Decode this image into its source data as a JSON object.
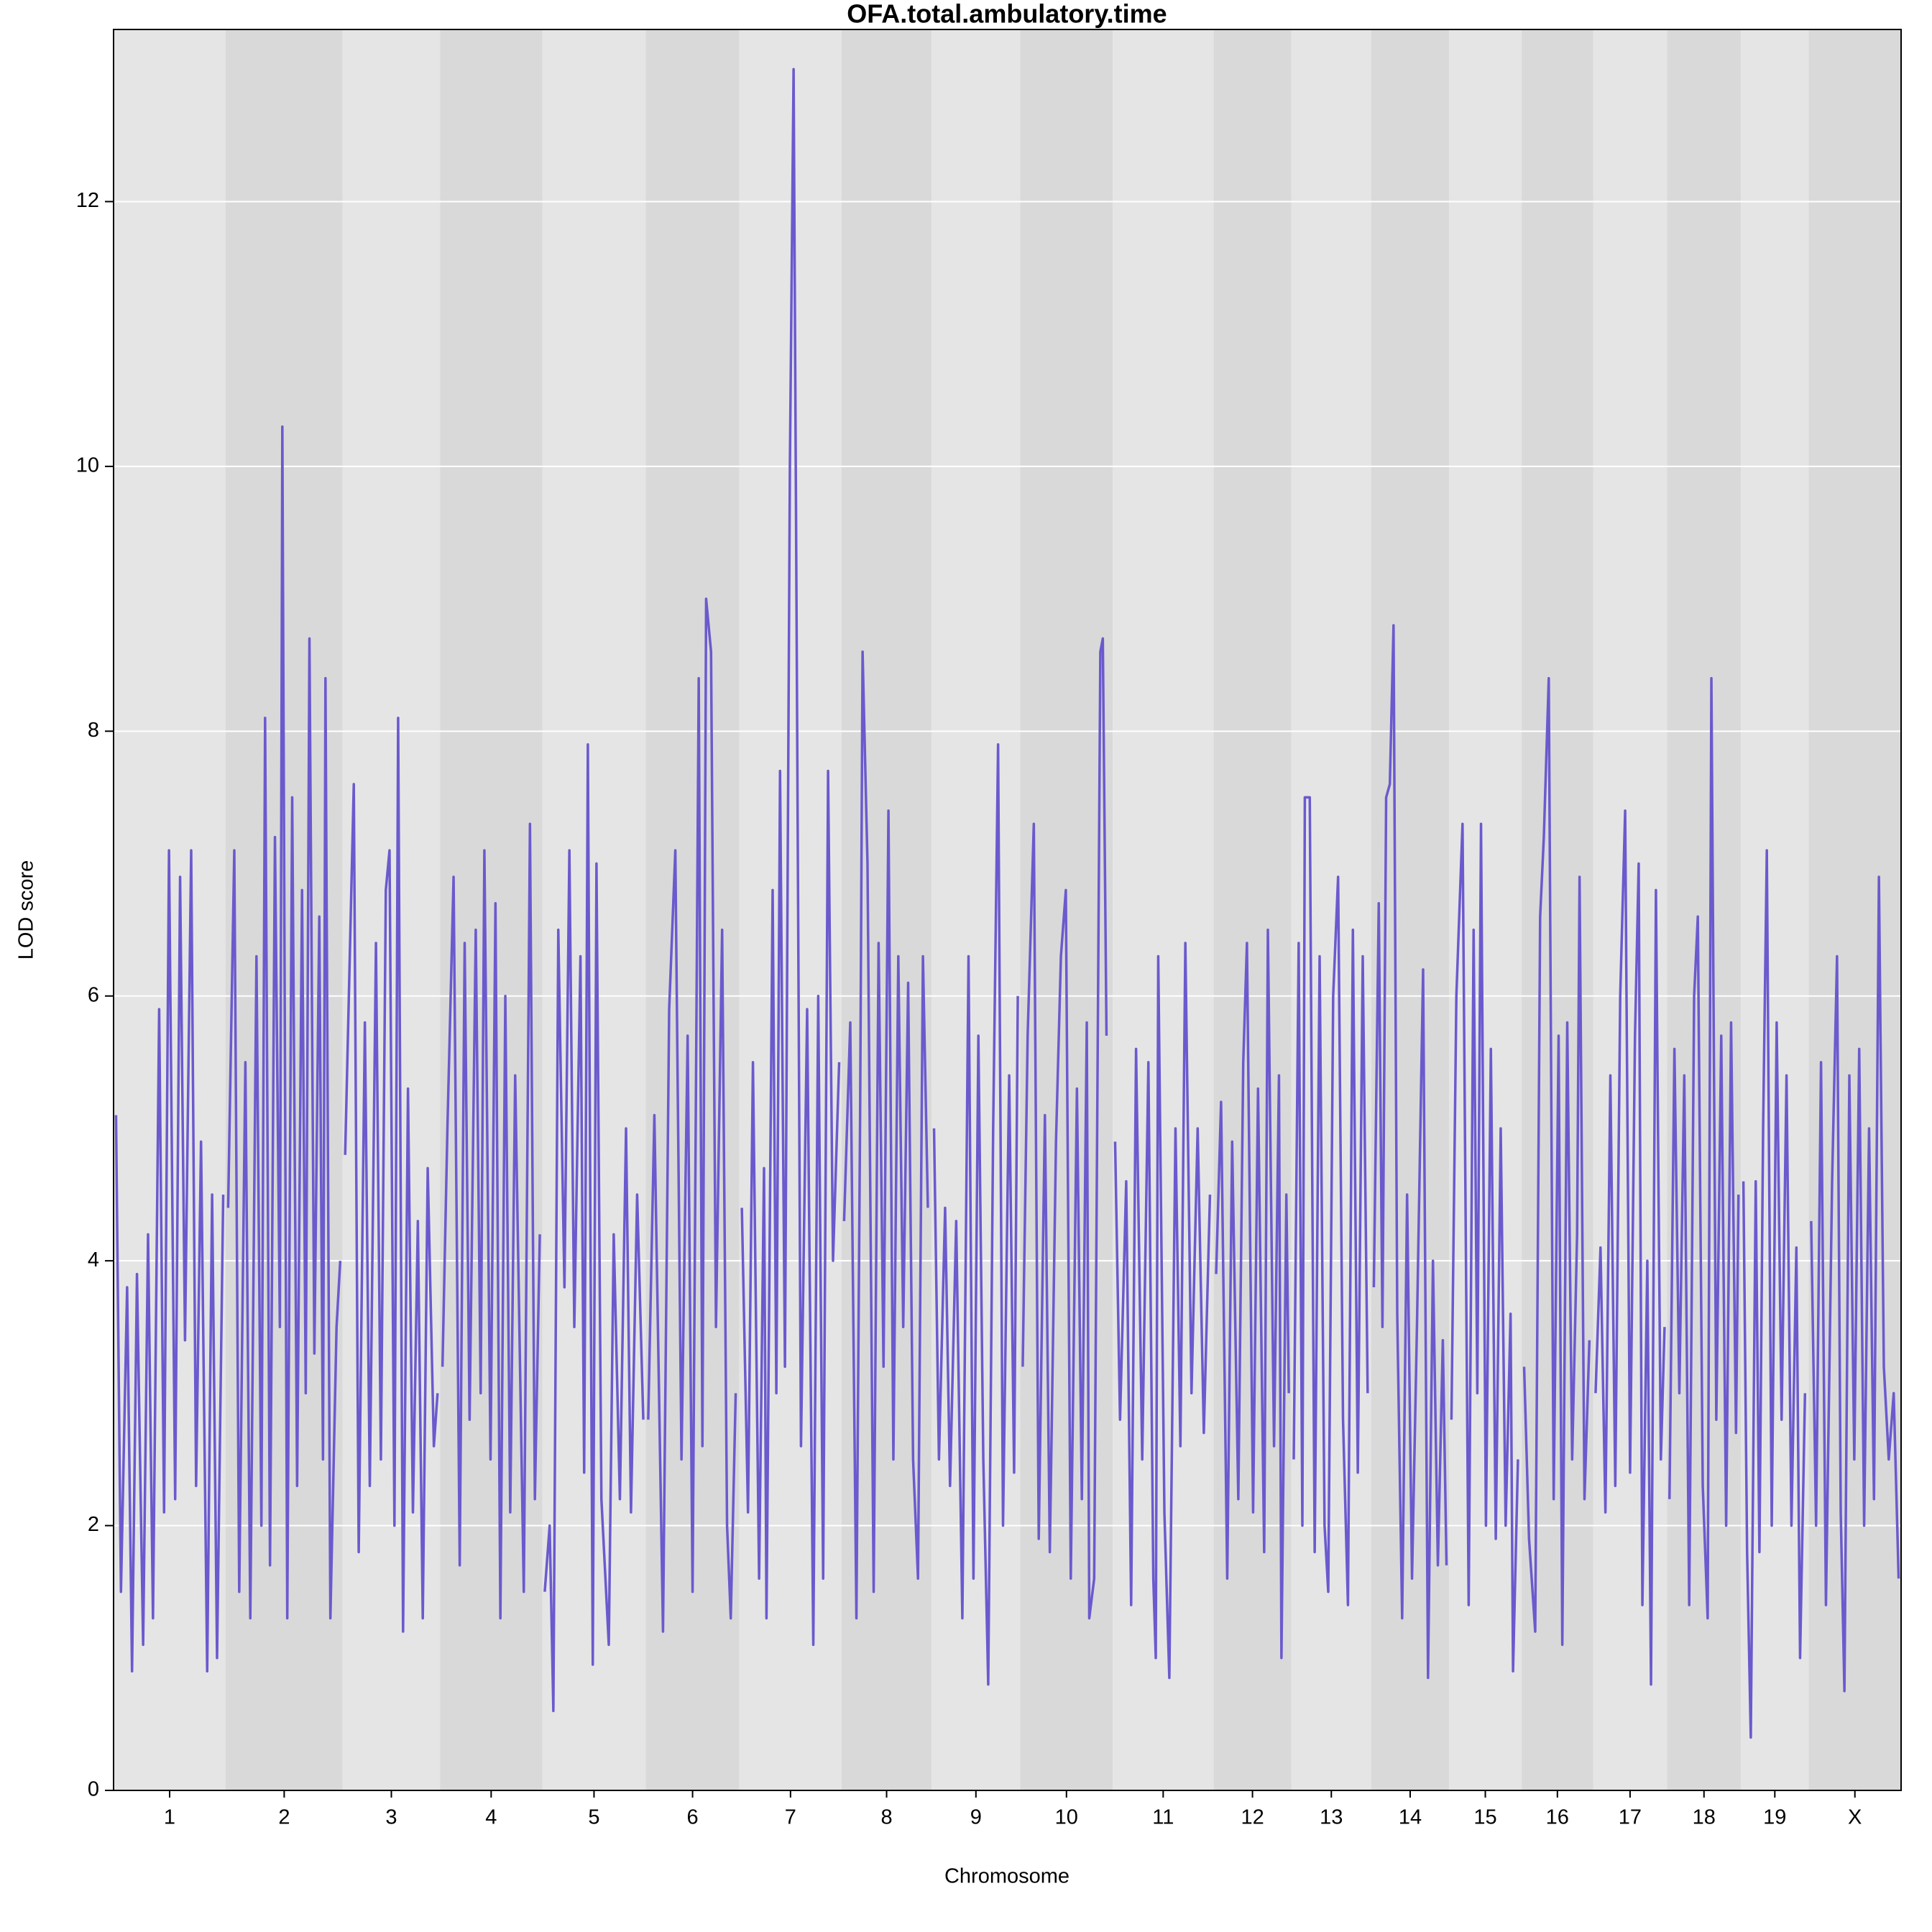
{
  "chart_data": {
    "type": "line",
    "title": "OFA.total.ambulatory.time",
    "xlabel": "Chromosome",
    "ylabel": "LOD score",
    "color": "#6a5acd",
    "band_colors": [
      "#e5e5e5",
      "#d9d9d9"
    ],
    "grid": true,
    "xlim": [
      0,
      1451
    ],
    "ylim": [
      0,
      13.3
    ],
    "yticks": [
      0,
      2,
      4,
      6,
      8,
      10,
      12
    ],
    "chromosomes": [
      {
        "name": "1",
        "xlim": [
          0,
          91
        ],
        "x": [
          2,
          6,
          11,
          15,
          19,
          24,
          28,
          32,
          37,
          41,
          45,
          50,
          54,
          58,
          63,
          67,
          71,
          76,
          80,
          84,
          89
        ],
        "values": [
          5.1,
          1.5,
          3.8,
          0.9,
          3.9,
          1.1,
          4.2,
          1.3,
          5.9,
          2.1,
          7.1,
          2.2,
          6.9,
          3.4,
          7.1,
          2.3,
          4.9,
          0.9,
          4.5,
          1.0,
          4.5
        ]
      },
      {
        "name": "2",
        "xlim": [
          91,
          186
        ],
        "x": [
          93,
          98,
          102,
          107,
          111,
          116,
          120,
          123,
          127,
          131,
          135,
          137,
          141,
          145,
          149,
          153,
          156,
          159,
          163,
          167,
          170,
          172,
          176,
          181,
          184
        ],
        "values": [
          4.4,
          7.1,
          1.5,
          5.5,
          1.3,
          6.3,
          2.0,
          8.1,
          1.7,
          7.2,
          3.5,
          10.3,
          1.3,
          7.5,
          2.3,
          6.8,
          3.0,
          8.7,
          3.3,
          6.6,
          2.5,
          8.4,
          1.3,
          3.5,
          4.0
        ]
      },
      {
        "name": "3",
        "xlim": [
          186,
          265
        ],
        "x": [
          188,
          195,
          199,
          204,
          208,
          213,
          217,
          221,
          224,
          228,
          231,
          235,
          239,
          243,
          247,
          251,
          255,
          260,
          263
        ],
        "values": [
          4.8,
          7.6,
          1.8,
          5.8,
          2.3,
          6.4,
          2.5,
          6.8,
          7.1,
          2.0,
          8.1,
          1.2,
          5.3,
          2.1,
          4.3,
          1.3,
          4.7,
          2.6,
          3.0
        ]
      },
      {
        "name": "4",
        "xlim": [
          265,
          348
        ],
        "x": [
          267,
          271,
          276,
          281,
          285,
          289,
          294,
          298,
          301,
          306,
          310,
          314,
          318,
          322,
          326,
          333,
          337,
          338,
          342,
          346
        ],
        "values": [
          3.2,
          5.0,
          6.9,
          1.7,
          6.4,
          2.8,
          6.5,
          3.0,
          7.1,
          2.5,
          6.7,
          1.3,
          6.0,
          2.1,
          5.4,
          1.5,
          6.1,
          7.3,
          2.2,
          4.2
        ]
      },
      {
        "name": "5",
        "xlim": [
          348,
          432
        ],
        "x": [
          350,
          354,
          357,
          361,
          366,
          370,
          374,
          379,
          382,
          385,
          389,
          392,
          396,
          402,
          406,
          411,
          416,
          420,
          425,
          430
        ],
        "values": [
          1.5,
          2.0,
          0.6,
          6.5,
          3.8,
          7.1,
          3.5,
          6.3,
          2.4,
          7.9,
          0.95,
          7.0,
          2.2,
          1.1,
          4.2,
          2.2,
          5.0,
          2.1,
          4.5,
          2.8
        ]
      },
      {
        "name": "6",
        "xlim": [
          432,
          508
        ],
        "x": [
          434,
          439,
          446,
          451,
          456,
          461,
          466,
          470,
          475,
          478,
          481,
          485,
          489,
          494,
          498,
          501,
          505
        ],
        "values": [
          2.8,
          5.1,
          1.2,
          5.9,
          7.1,
          2.5,
          5.7,
          1.5,
          8.4,
          2.6,
          9.0,
          8.6,
          3.5,
          6.5,
          2.0,
          1.3,
          3.0
        ]
      },
      {
        "name": "7",
        "xlim": [
          508,
          591
        ],
        "x": [
          510,
          515,
          519,
          524,
          528,
          530,
          535,
          538,
          541,
          545,
          549,
          552,
          554,
          558,
          563,
          568,
          572,
          576,
          580,
          584,
          589
        ],
        "values": [
          4.4,
          2.1,
          5.5,
          1.6,
          4.7,
          1.3,
          6.8,
          3.0,
          7.7,
          3.2,
          10.0,
          13.0,
          9.6,
          2.6,
          5.9,
          1.1,
          6.0,
          1.6,
          7.7,
          4.0,
          5.5
        ]
      },
      {
        "name": "8",
        "xlim": [
          591,
          664
        ],
        "x": [
          593,
          598,
          603,
          606,
          608,
          612,
          617,
          621,
          625,
          629,
          633,
          637,
          641,
          645,
          649,
          653,
          657,
          661
        ],
        "values": [
          4.3,
          5.8,
          1.3,
          5.1,
          8.6,
          7.0,
          1.5,
          6.4,
          3.2,
          7.4,
          2.5,
          6.3,
          3.5,
          6.1,
          2.5,
          1.6,
          6.3,
          4.4
        ]
      },
      {
        "name": "9",
        "xlim": [
          664,
          736
        ],
        "x": [
          666,
          670,
          675,
          679,
          684,
          689,
          694,
          698,
          702,
          706,
          710,
          714,
          718,
          722,
          727,
          731,
          734
        ],
        "values": [
          5.0,
          2.5,
          4.4,
          2.3,
          4.3,
          1.3,
          6.3,
          1.6,
          5.7,
          2.5,
          0.8,
          5.0,
          7.9,
          2.0,
          5.4,
          2.4,
          6.0
        ]
      },
      {
        "name": "10",
        "xlim": [
          736,
          811
        ],
        "x": [
          738,
          742,
          747,
          751,
          756,
          760,
          765,
          769,
          773,
          777,
          782,
          786,
          790,
          792,
          796,
          801,
          803,
          806
        ],
        "values": [
          3.2,
          5.7,
          7.3,
          1.9,
          5.1,
          1.8,
          4.9,
          6.3,
          6.8,
          1.6,
          5.3,
          2.2,
          5.8,
          1.3,
          1.6,
          8.6,
          8.7,
          5.7
        ]
      },
      {
        "name": "11",
        "xlim": [
          811,
          893
        ],
        "x": [
          813,
          817,
          822,
          826,
          830,
          835,
          840,
          844,
          846,
          848,
          853,
          857,
          862,
          866,
          870,
          875,
          880,
          885,
          890
        ],
        "values": [
          4.9,
          2.8,
          4.6,
          1.4,
          5.6,
          2.5,
          5.5,
          1.6,
          1.0,
          6.3,
          2.1,
          0.85,
          5.0,
          2.6,
          6.4,
          3.0,
          5.0,
          2.7,
          4.5
        ]
      },
      {
        "name": "12",
        "xlim": [
          893,
          956
        ],
        "x": [
          895,
          899,
          904,
          908,
          913,
          917,
          920,
          925,
          929,
          934,
          937,
          942,
          946,
          948,
          952,
          954
        ],
        "values": [
          3.9,
          5.2,
          1.6,
          4.9,
          2.2,
          5.5,
          6.4,
          2.1,
          5.3,
          1.8,
          6.5,
          2.6,
          5.4,
          1.0,
          4.5,
          3.0
        ]
      },
      {
        "name": "13",
        "xlim": [
          956,
          1021
        ],
        "x": [
          958,
          962,
          965,
          967,
          971,
          975,
          979,
          983,
          986,
          990,
          994,
          998,
          1002,
          1006,
          1010,
          1014,
          1018
        ],
        "values": [
          2.5,
          6.4,
          2.0,
          7.5,
          7.5,
          1.8,
          6.3,
          2.0,
          1.5,
          6.0,
          6.9,
          2.8,
          1.4,
          6.5,
          2.4,
          6.3,
          3.0
        ]
      },
      {
        "name": "14",
        "xlim": [
          1021,
          1084
        ],
        "x": [
          1023,
          1027,
          1030,
          1033,
          1036,
          1039,
          1042,
          1046,
          1050,
          1054,
          1058,
          1063,
          1067,
          1071,
          1075,
          1079,
          1082
        ],
        "values": [
          3.8,
          6.7,
          3.5,
          7.5,
          7.6,
          8.8,
          3.6,
          1.3,
          4.5,
          1.6,
          3.5,
          6.2,
          0.85,
          4.0,
          1.7,
          3.4,
          1.7
        ]
      },
      {
        "name": "15",
        "xlim": [
          1084,
          1143
        ],
        "x": [
          1086,
          1090,
          1095,
          1100,
          1104,
          1107,
          1110,
          1114,
          1118,
          1122,
          1126,
          1130,
          1134,
          1136,
          1140
        ],
        "values": [
          2.8,
          6.0,
          7.3,
          1.4,
          6.5,
          3.0,
          7.3,
          2.0,
          5.6,
          1.9,
          5.0,
          2.0,
          3.6,
          0.9,
          2.5
        ]
      },
      {
        "name": "16",
        "xlim": [
          1143,
          1201
        ],
        "x": [
          1145,
          1149,
          1154,
          1158,
          1161,
          1165,
          1169,
          1173,
          1176,
          1180,
          1184,
          1188,
          1190,
          1194,
          1198
        ],
        "values": [
          3.2,
          1.9,
          1.2,
          6.6,
          7.2,
          8.4,
          2.2,
          5.7,
          1.1,
          5.8,
          2.5,
          4.2,
          6.9,
          2.2,
          3.4
        ]
      },
      {
        "name": "17",
        "xlim": [
          1201,
          1261
        ],
        "x": [
          1203,
          1207,
          1211,
          1215,
          1219,
          1223,
          1227,
          1231,
          1235,
          1238,
          1241,
          1245,
          1248,
          1252,
          1256,
          1259
        ],
        "values": [
          3.0,
          4.1,
          2.1,
          5.4,
          2.3,
          6.0,
          7.4,
          2.4,
          5.7,
          7.0,
          1.4,
          4.0,
          0.8,
          6.8,
          2.5,
          3.5
        ]
      },
      {
        "name": "18",
        "xlim": [
          1261,
          1321
        ],
        "x": [
          1263,
          1267,
          1271,
          1275,
          1279,
          1283,
          1286,
          1290,
          1294,
          1297,
          1301,
          1305,
          1309,
          1313,
          1317,
          1319
        ],
        "values": [
          2.2,
          5.6,
          3.0,
          5.4,
          1.4,
          6.0,
          6.6,
          2.3,
          1.3,
          8.4,
          2.8,
          5.7,
          2.0,
          5.8,
          2.7,
          4.5
        ]
      },
      {
        "name": "19",
        "xlim": [
          1321,
          1376
        ],
        "x": [
          1323,
          1326,
          1329,
          1333,
          1336,
          1339,
          1342,
          1346,
          1350,
          1354,
          1358,
          1362,
          1366,
          1369,
          1373
        ],
        "values": [
          4.6,
          1.8,
          0.4,
          4.6,
          1.8,
          5.0,
          7.1,
          2.0,
          5.8,
          2.8,
          5.4,
          2.0,
          4.1,
          1.0,
          3.0
        ]
      },
      {
        "name": "X",
        "xlim": [
          1376,
          1451
        ],
        "x": [
          1378,
          1382,
          1386,
          1390,
          1395,
          1399,
          1402,
          1405,
          1409,
          1413,
          1417,
          1421,
          1425,
          1429,
          1433,
          1437,
          1441,
          1445,
          1449
        ],
        "values": [
          4.3,
          2.0,
          5.5,
          1.4,
          4.6,
          6.3,
          2.1,
          0.75,
          5.4,
          2.5,
          5.6,
          2.0,
          5.0,
          2.2,
          6.9,
          3.2,
          2.5,
          3.0,
          1.6
        ]
      }
    ]
  }
}
